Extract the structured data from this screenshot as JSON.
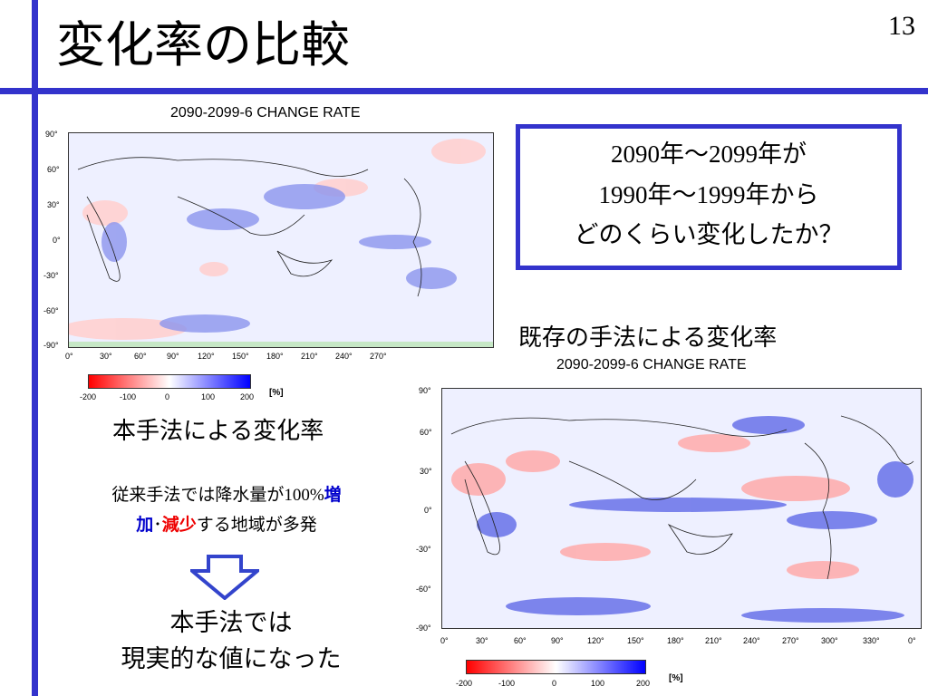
{
  "slide": {
    "title": "変化率の比較",
    "page_number": "13"
  },
  "map_top": {
    "title": "2090-2099-6 CHANGE RATE",
    "lat_labels": [
      "90°",
      "60°",
      "30°",
      "0°",
      "-30°",
      "-60°",
      "-90°"
    ],
    "lon_labels": [
      "0°",
      "30°",
      "60°",
      "90°",
      "120°",
      "150°",
      "180°",
      "210°",
      "240°",
      "270°"
    ],
    "colorbar": {
      "ticks": [
        "-200",
        "-100",
        "0",
        "100",
        "200"
      ],
      "unit": "[%]"
    },
    "caption": "本手法による変化率"
  },
  "map_bottom": {
    "title": "2090-2099-6 CHANGE RATE",
    "lat_labels": [
      "90°",
      "60°",
      "30°",
      "0°",
      "-30°",
      "-60°",
      "-90°"
    ],
    "lon_labels": [
      "0°",
      "30°",
      "60°",
      "90°",
      "120°",
      "150°",
      "180°",
      "210°",
      "240°",
      "270°",
      "300°",
      "330°",
      "0°"
    ],
    "colorbar": {
      "ticks": [
        "-200",
        "-100",
        "0",
        "100",
        "200"
      ],
      "unit": "[%]"
    },
    "caption": "既存の手法による変化率"
  },
  "question": {
    "line1_a": "2090",
    "line1_b": "年～",
    "line1_c": "2099",
    "line1_d": "年が",
    "line2_a": "1990",
    "line2_b": "年～",
    "line2_c": "1999",
    "line2_d": "年から",
    "line3": "どのくらい変化したか？"
  },
  "note": {
    "part1": "従来手法では降水量が",
    "part2": "100%",
    "increase": "増",
    "increase2": "加",
    "sep": "･",
    "decrease": "減少",
    "part3": "する地域が多発"
  },
  "conclusion": {
    "line1": "本手法では",
    "line2": "現実的な値になった"
  },
  "colors": {
    "accent": "#3333cc",
    "increase": "#0000cc",
    "decrease": "#ee0000"
  }
}
